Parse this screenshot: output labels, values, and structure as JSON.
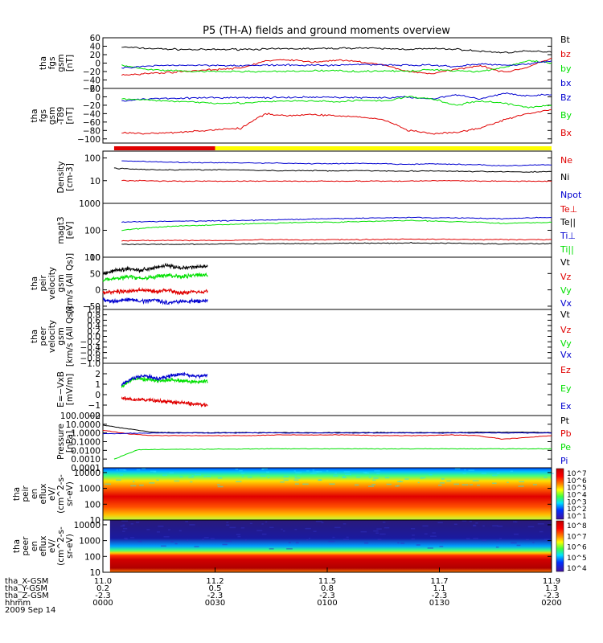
{
  "title": "P5 (TH-A) fields and ground moments overview",
  "colors": {
    "black": "#000000",
    "red": "#e00000",
    "green": "#00e000",
    "blue": "#0000d0",
    "yellow": "#ffff00"
  },
  "chart_data": {
    "type": "line",
    "title": "P5 (TH-A) fields and ground moments overview",
    "x_axis": {
      "range": [
        "00:00",
        "02:00"
      ],
      "tick_rows": [
        {
          "label": "tha_X-GSM",
          "values": [
            "11.0",
            "11.2",
            "11.5",
            "11.7",
            "11.9"
          ]
        },
        {
          "label": "tha_Y-GSM",
          "values": [
            "0.2",
            "0.5",
            "0.8",
            "1.1",
            "1.3"
          ]
        },
        {
          "label": "tha_Z-GSM",
          "values": [
            "-2.3",
            "-2.3",
            "-2.3",
            "-2.3",
            "-2.3"
          ]
        },
        {
          "label": "hhmm",
          "values": [
            "0000",
            "0030",
            "0100",
            "0130",
            "0200"
          ]
        }
      ],
      "date": "2009 Sep 14"
    },
    "mode_bar": [
      {
        "from": "00:03",
        "to": "00:30",
        "color": "red"
      },
      {
        "from": "00:30",
        "to": "02:00",
        "color": "yellow"
      }
    ],
    "panels": [
      {
        "id": "fgs",
        "ylabel": [
          "tha",
          "fgs",
          "gsm",
          "[nT]"
        ],
        "scale": "linear",
        "ylim": [
          -60,
          60
        ],
        "ticks": [
          "60",
          "40",
          "20",
          "0",
          "−20",
          "−40",
          "−60"
        ],
        "series": [
          {
            "name": "Bt",
            "color": "black",
            "start": "00:05",
            "end": "02:00",
            "values": [
              38,
              35,
              33,
              32,
              32,
              33,
              33,
              34,
              34,
              35,
              36,
              34,
              33,
              34,
              33,
              28,
              25,
              28,
              27
            ]
          },
          {
            "name": "bz",
            "color": "red",
            "start": "00:05",
            "end": "02:00",
            "values": [
              -28,
              -25,
              -22,
              -18,
              -15,
              -12,
              5,
              8,
              2,
              7,
              3,
              -5,
              -20,
              -25,
              -15,
              -5,
              -22,
              -10,
              12
            ]
          },
          {
            "name": "by",
            "color": "green",
            "start": "00:05",
            "end": "02:00",
            "values": [
              -5,
              -15,
              -18,
              -20,
              -20,
              -20,
              -20,
              -20,
              -18,
              -18,
              -20,
              -18,
              -20,
              -15,
              -18,
              -20,
              -10,
              5,
              0
            ]
          },
          {
            "name": "bx",
            "color": "blue",
            "start": "00:05",
            "end": "02:00",
            "values": [
              -12,
              -8,
              -5,
              -5,
              -5,
              -6,
              -5,
              -5,
              -5,
              -5,
              -3,
              -4,
              -5,
              -5,
              -8,
              -2,
              -5,
              -2,
              5
            ]
          }
        ]
      },
      {
        "id": "fgs-t89",
        "ylabel": [
          "tha",
          "fgs",
          "gsm",
          "-T89",
          "[nT]"
        ],
        "scale": "linear",
        "ylim": [
          -110,
          20
        ],
        "ticks": [
          "20",
          "0",
          "−20",
          "−40",
          "−60",
          "−80",
          "−100"
        ],
        "series": [
          {
            "name": "Bz",
            "color": "blue",
            "start": "00:05",
            "end": "02:00",
            "values": [
              -10,
              -5,
              -3,
              -3,
              -2,
              -2,
              -2,
              -2,
              -1,
              -1,
              -2,
              -2,
              -1,
              -5,
              5,
              -5,
              8,
              3,
              5
            ]
          },
          {
            "name": "By",
            "color": "green",
            "start": "00:05",
            "end": "02:00",
            "values": [
              -5,
              -8,
              -10,
              -12,
              -15,
              -15,
              -12,
              -10,
              -10,
              -12,
              -8,
              -10,
              0,
              -5,
              -20,
              -10,
              -15,
              -25,
              -20
            ]
          },
          {
            "name": "Bx",
            "color": "red",
            "start": "00:05",
            "end": "02:00",
            "values": [
              -85,
              -88,
              -85,
              -82,
              -78,
              -75,
              -40,
              -45,
              -42,
              -45,
              -48,
              -55,
              -80,
              -88,
              -85,
              -75,
              -55,
              -40,
              -30
            ]
          }
        ]
      },
      {
        "id": "density",
        "ylabel": [
          "Density",
          "[cm-3]"
        ],
        "scale": "log",
        "ylim": [
          1,
          200
        ],
        "ticks": [
          "100",
          "10"
        ],
        "series": [
          {
            "name": "Ne",
            "color": "red",
            "start": "00:05",
            "end": "02:00",
            "values": [
              10,
              10,
              9.5,
              9.5,
              9.5,
              9.5,
              9.5,
              9.5,
              9.5,
              9.5,
              9.5,
              9.5,
              9.5,
              10,
              10,
              9.5,
              9.5,
              9.5,
              9.5
            ]
          },
          {
            "name": "Ni",
            "color": "black",
            "start": "00:03",
            "end": "02:00",
            "values": [
              35,
              32,
              30,
              30,
              30,
              30,
              28,
              27,
              28,
              27,
              28,
              27,
              26,
              27,
              26,
              25,
              25,
              24,
              25
            ]
          },
          {
            "name": "Npot",
            "color": "blue",
            "start": "00:05",
            "end": "02:00",
            "values": [
              75,
              70,
              65,
              62,
              62,
              60,
              60,
              58,
              56,
              56,
              57,
              55,
              52,
              55,
              52,
              50,
              45,
              48,
              50
            ]
          }
        ]
      },
      {
        "id": "temperature",
        "ylabel": [
          "magt3",
          "[eV]"
        ],
        "scale": "log",
        "ylim": [
          10,
          1000
        ],
        "ticks": [
          "1000",
          "100",
          "10"
        ],
        "series": [
          {
            "name": "Te⊥",
            "color": "red",
            "start": "00:05",
            "end": "02:00",
            "values": [
              40,
              42,
              42,
              42,
              42,
              43,
              45,
              44,
              44,
              45,
              45,
              46,
              47,
              46,
              46,
              45,
              45,
              45,
              45
            ]
          },
          {
            "name": "Te||",
            "color": "black",
            "start": "00:05",
            "end": "02:00",
            "values": [
              30,
              30,
              30,
              30,
              31,
              31,
              32,
              32,
              32,
              33,
              33,
              33,
              34,
              33,
              33,
              32,
              31,
              32,
              32
            ]
          },
          {
            "name": "Ti⊥",
            "color": "blue",
            "start": "00:05",
            "end": "02:00",
            "values": [
              200,
              210,
              215,
              220,
              225,
              230,
              240,
              250,
              260,
              270,
              280,
              290,
              300,
              290,
              290,
              280,
              270,
              290,
              300
            ]
          },
          {
            "name": "Ti||",
            "color": "green",
            "start": "00:05",
            "end": "02:00",
            "values": [
              100,
              120,
              140,
              150,
              160,
              170,
              180,
              190,
              200,
              200,
              210,
              220,
              230,
              220,
              210,
              200,
              180,
              190,
              200
            ]
          }
        ]
      },
      {
        "id": "peir-velocity",
        "ylabel": [
          "tha",
          "peir",
          "velocity",
          "gsm",
          "[km/s (All Qs)]"
        ],
        "scale": "linear",
        "ylim": [
          -60,
          100
        ],
        "ticks": [
          "100",
          "50",
          "0",
          "−50"
        ],
        "series": [
          {
            "name": "Vt",
            "color": "black",
            "start": "00:00",
            "end": "00:28",
            "values": [
              50,
              60,
              65,
              60,
              70,
              75,
              65,
              70,
              72
            ]
          },
          {
            "name": "Vz",
            "color": "red",
            "start": "00:00",
            "end": "00:28",
            "values": [
              -10,
              -5,
              -5,
              0,
              -5,
              0,
              -10,
              -5,
              -5
            ]
          },
          {
            "name": "Vy",
            "color": "green",
            "start": "00:00",
            "end": "00:28",
            "values": [
              30,
              35,
              40,
              35,
              40,
              45,
              40,
              45,
              45
            ]
          },
          {
            "name": "Vx",
            "color": "blue",
            "start": "00:00",
            "end": "00:28",
            "values": [
              -30,
              -35,
              -30,
              -35,
              -30,
              -40,
              -35,
              -35,
              -35
            ]
          }
        ]
      },
      {
        "id": "peer-velocity",
        "ylabel": [
          "tha",
          "peer",
          "velocity",
          "gsm",
          "[km/s (All Qs)]"
        ],
        "scale": "linear",
        "ylim": [
          -1,
          1
        ],
        "ticks": [
          "1.0",
          "0.8",
          "0.6",
          "0.4",
          "0.2",
          "0.0",
          "−0.2",
          "−0.4",
          "−0.6",
          "−0.8",
          "−1.0"
        ],
        "series": [
          {
            "name": "Vt",
            "color": "black",
            "values": []
          },
          {
            "name": "Vz",
            "color": "red",
            "values": []
          },
          {
            "name": "Vy",
            "color": "green",
            "values": []
          },
          {
            "name": "Vx",
            "color": "blue",
            "values": []
          }
        ]
      },
      {
        "id": "efield",
        "ylabel": [
          "E=−VxB",
          "[mV/m]"
        ],
        "scale": "linear",
        "ylim": [
          -2,
          3
        ],
        "ticks": [
          "2",
          "1",
          "0",
          "−1",
          "−2"
        ],
        "series": [
          {
            "name": "Ez",
            "color": "red",
            "start": "00:05",
            "end": "00:28",
            "values": [
              -0.3,
              -0.5,
              -0.5,
              -0.6,
              -0.7,
              -0.8,
              -0.9,
              -1.0
            ]
          },
          {
            "name": "Ey",
            "color": "green",
            "start": "00:05",
            "end": "00:28",
            "values": [
              0.8,
              1.5,
              1.5,
              1.3,
              1.4,
              1.3,
              1.2,
              1.3
            ]
          },
          {
            "name": "Ex",
            "color": "blue",
            "start": "00:05",
            "end": "00:28",
            "values": [
              1.0,
              1.6,
              1.8,
              1.5,
              1.8,
              2.0,
              1.7,
              1.9
            ]
          }
        ]
      },
      {
        "id": "pressure",
        "ylabel": [
          "Pressure",
          "[nPa]"
        ],
        "scale": "log",
        "ylim": [
          0.0001,
          100
        ],
        "ticks": [
          "100.0000",
          "10.0000",
          "1.0000",
          "0.1000",
          "0.0100",
          "0.0010",
          "0.0001"
        ],
        "series": [
          {
            "name": "Pt",
            "color": "black",
            "start": "00:00",
            "end": "02:00",
            "values": [
              8,
              3,
              1.2,
              1.1,
              1.1,
              1.1,
              1.1,
              1.1,
              1.1,
              1.1,
              1.1,
              1.1,
              1.1,
              1.1,
              1.1,
              1.2,
              1.2,
              1.2,
              1.1
            ]
          },
          {
            "name": "Pb",
            "color": "red",
            "start": "00:00",
            "end": "02:00",
            "values": [
              2,
              0.8,
              0.5,
              0.5,
              0.5,
              0.5,
              0.5,
              0.6,
              0.6,
              0.6,
              0.6,
              0.5,
              0.5,
              0.5,
              0.6,
              0.5,
              0.2,
              0.3,
              0.5
            ]
          },
          {
            "name": "Pe",
            "color": "green",
            "start": "00:03",
            "end": "02:00",
            "values": [
              0.001,
              0.012,
              0.013,
              0.013,
              0.014,
              0.014,
              0.015,
              0.015,
              0.015,
              0.015,
              0.015,
              0.015,
              0.015,
              0.015,
              0.015,
              0.015,
              0.015,
              0.015,
              0.015
            ]
          },
          {
            "name": "Pi",
            "color": "blue",
            "start": "00:00",
            "end": "02:00",
            "values": [
              0.8,
              0.9,
              1.0,
              1.0,
              1.0,
              1.0,
              1.0,
              1.0,
              1.0,
              1.0,
              1.0,
              1.0,
              1.0,
              1.0,
              1.0,
              1.0,
              1.0,
              1.0,
              1.0
            ]
          }
        ]
      },
      {
        "id": "peir-spectrogram",
        "type": "heatmap",
        "ylabel": [
          "tha",
          "peir",
          "en",
          "eflux",
          "eV/",
          "(cm^2-s-",
          "sr-eV)"
        ],
        "scale": "log",
        "ylim": [
          10,
          20000
        ],
        "ticks": [
          "10000",
          "1000",
          "100",
          "10"
        ],
        "colorbar_ticks": [
          "10^7",
          "10^6",
          "10^5",
          "10^4",
          "10^3",
          "10^2",
          "10^1"
        ]
      },
      {
        "id": "peer-spectrogram",
        "type": "heatmap",
        "ylabel": [
          "tha",
          "peer",
          "en",
          "eflux",
          "eV/",
          "(cm^2-s-",
          "sr-eV)"
        ],
        "scale": "log",
        "ylim": [
          10,
          20000
        ],
        "ticks": [
          "10000",
          "1000",
          "100",
          "10"
        ],
        "colorbar_ticks": [
          "10^8",
          "10^7",
          "10^6",
          "10^5",
          "10^4"
        ]
      }
    ]
  }
}
